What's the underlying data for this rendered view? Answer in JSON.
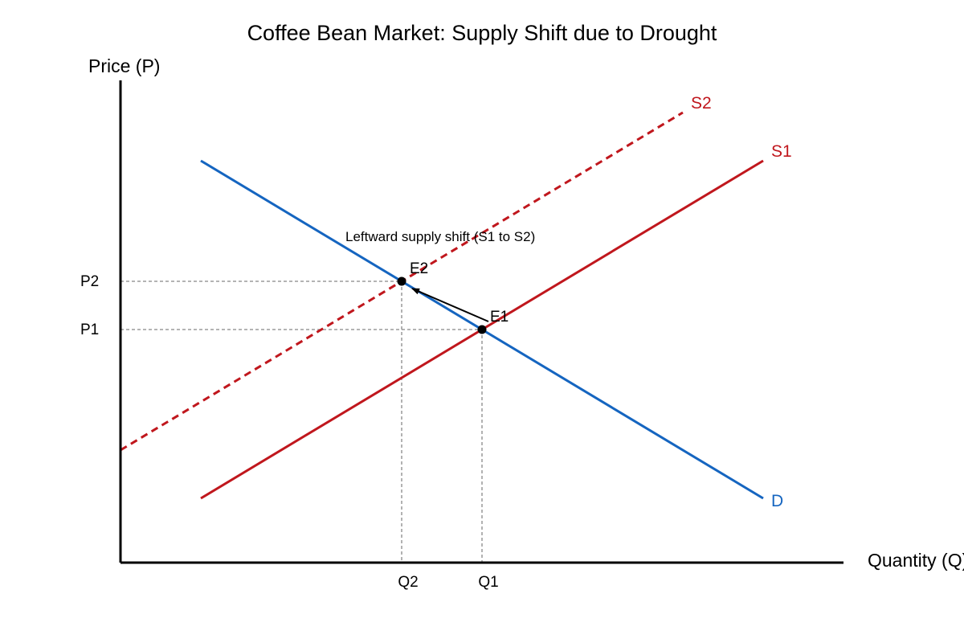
{
  "title": "Coffee Bean Market: Supply Shift due to Drought",
  "y_axis_label": "Price (P)",
  "x_axis_label": "Quantity (Q)",
  "price_ticks": {
    "p1": "P1",
    "p2": "P2"
  },
  "quantity_ticks": {
    "q1": "Q1",
    "q2": "Q2"
  },
  "curves": {
    "demand": {
      "label": "D",
      "color": "#1565c0"
    },
    "supply_original": {
      "label": "S1",
      "color": "#c0171d"
    },
    "supply_shifted": {
      "label": "S2",
      "color": "#c0171d",
      "style": "dashed"
    }
  },
  "equilibria": {
    "e1": "E1",
    "e2": "E2"
  },
  "shift_annotation": "Leftward supply shift (S1 to S2)",
  "colors": {
    "axis": "#000000",
    "guide": "#888888"
  }
}
